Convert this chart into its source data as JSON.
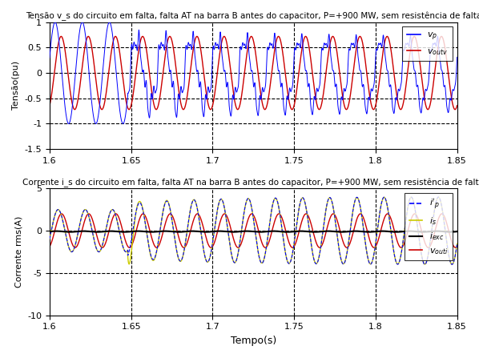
{
  "title1": "Tensão v_s do circuito em falta, falta AT na barra B antes do capacitor, P=+900 MW, sem resistência de falta",
  "title2": "Corrente i_s do circuito em falta, falta AT na barra B antes do capacitor, P=+900 MW, sem resistência de falta",
  "xlabel": "Tempo(s)",
  "ylabel1": "Tensão(pu)",
  "ylabel2": "Corrente rms(A)",
  "xmin": 1.6,
  "xmax": 1.85,
  "y1min": -1.5,
  "y1max": 1.0,
  "y2min": -10.0,
  "y2max": 5.0,
  "fault_time": 1.648,
  "freq": 60,
  "color_vp": "#0000FF",
  "color_voutv": "#CC0000",
  "color_ip": "#0000FF",
  "color_is": "#CCCC00",
  "color_iexc": "#000000",
  "color_vouti": "#CC0000",
  "vgrid_lines": [
    1.65,
    1.7,
    1.75,
    1.8
  ],
  "hgrid_lines1": [
    -1.0,
    -0.5,
    0.0,
    0.5
  ],
  "hgrid_lines2": [
    -5.0,
    0.0
  ],
  "figsize": [
    5.98,
    4.47
  ],
  "dpi": 100
}
